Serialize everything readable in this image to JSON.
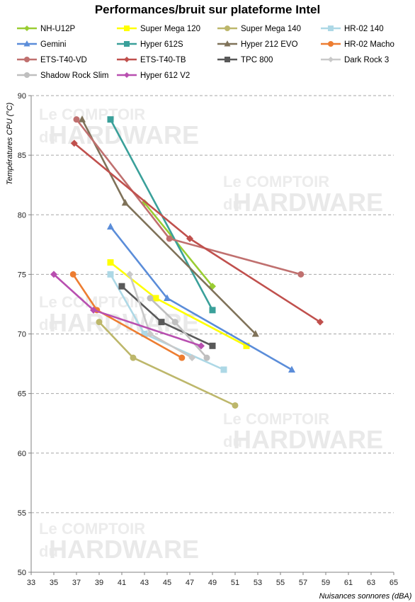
{
  "chart_data": {
    "type": "line",
    "title": "Performances/bruit  sur plateforme Intel",
    "xlabel": "Nuisances  sonnores (dBA)",
    "ylabel": "Températures  CPU (°C)",
    "xlim": [
      33,
      65
    ],
    "ylim": [
      50,
      90
    ],
    "x_ticks": [
      33,
      35,
      37,
      39,
      41,
      43,
      45,
      47,
      49,
      51,
      53,
      55,
      57,
      59,
      61,
      63,
      65
    ],
    "y_ticks": [
      50,
      55,
      60,
      65,
      70,
      75,
      80,
      85,
      90
    ],
    "grid": "horizontal dashed",
    "legend_position": "top",
    "series": [
      {
        "name": "NH-U12P",
        "color": "#9acd32",
        "marker": "diamond",
        "points": [
          [
            43,
            81
          ],
          [
            49,
            74
          ]
        ]
      },
      {
        "name": "Super Mega 120",
        "color": "#ffff00",
        "marker": "square",
        "points": [
          [
            40,
            76
          ],
          [
            44,
            73
          ],
          [
            52,
            69
          ]
        ]
      },
      {
        "name": "Super Mega 140",
        "color": "#bdb76b",
        "marker": "circle",
        "points": [
          [
            39,
            71
          ],
          [
            42,
            68
          ],
          [
            51,
            64
          ]
        ]
      },
      {
        "name": "HR-02 140",
        "color": "#add8e6",
        "marker": "square",
        "points": [
          [
            40,
            75
          ],
          [
            43,
            70
          ],
          [
            50,
            67
          ]
        ]
      },
      {
        "name": "Gemini",
        "color": "#5b8dd9",
        "marker": "triangle",
        "points": [
          [
            40,
            79
          ],
          [
            45,
            73
          ],
          [
            56,
            67
          ]
        ]
      },
      {
        "name": "Hyper 612S",
        "color": "#3aa09a",
        "marker": "square",
        "points": [
          [
            40,
            88
          ],
          [
            49,
            72
          ]
        ]
      },
      {
        "name": "Hyper 212 EVO",
        "color": "#7f7259",
        "marker": "triangle",
        "points": [
          [
            37.5,
            88
          ],
          [
            41.3,
            81
          ],
          [
            52.8,
            70
          ]
        ]
      },
      {
        "name": "HR-02 Macho",
        "color": "#ed7d31",
        "marker": "circle",
        "points": [
          [
            36.7,
            75
          ],
          [
            38.8,
            72
          ],
          [
            46.3,
            68
          ]
        ]
      },
      {
        "name": "ETS-T40-VD",
        "color": "#c0706f",
        "marker": "circle",
        "points": [
          [
            37,
            88
          ],
          [
            45.2,
            78
          ],
          [
            56.8,
            75
          ]
        ]
      },
      {
        "name": "ETS-T40-TB",
        "color": "#c0504d",
        "marker": "diamond",
        "points": [
          [
            36.8,
            86
          ],
          [
            47,
            78
          ],
          [
            58.5,
            71
          ]
        ]
      },
      {
        "name": "TPC 800",
        "color": "#595959",
        "marker": "square",
        "points": [
          [
            41,
            74
          ],
          [
            44.5,
            71
          ],
          [
            49,
            69
          ]
        ]
      },
      {
        "name": "Dark Rock 3",
        "color": "#c9c9c9",
        "marker": "diamond",
        "points": [
          [
            41.7,
            75
          ],
          [
            43.5,
            70
          ],
          [
            47.2,
            68
          ]
        ]
      },
      {
        "name": "Shadow Rock Slim",
        "color": "#bfbfbf",
        "marker": "circle",
        "points": [
          [
            43.5,
            73
          ],
          [
            45.7,
            71
          ],
          [
            48.5,
            68
          ]
        ]
      },
      {
        "name": "Hyper 612 V2",
        "color": "#b84fb0",
        "marker": "diamond",
        "points": [
          [
            35,
            75
          ],
          [
            38.5,
            72
          ],
          [
            48,
            69
          ]
        ]
      }
    ]
  },
  "watermark": {
    "le": "Le",
    "comptoir": "COMPTOIR",
    "du": "du",
    "hardware": "HARDWARE"
  }
}
